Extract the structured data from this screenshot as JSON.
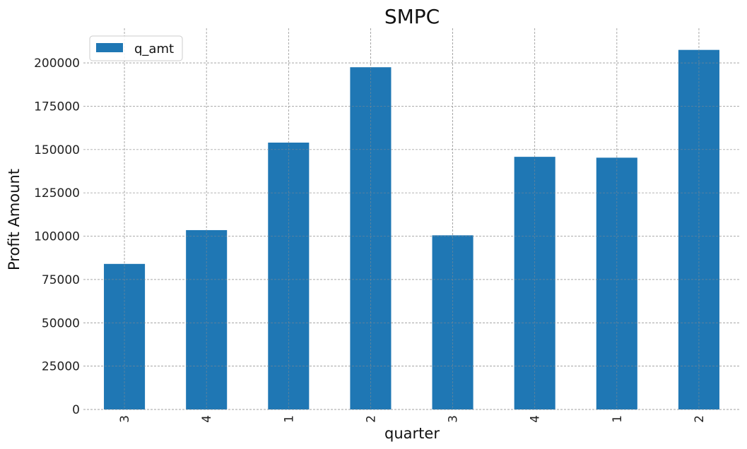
{
  "chart_data": {
    "type": "bar",
    "title": "SMPC",
    "xlabel": "quarter",
    "ylabel": "Profit Amount",
    "categories": [
      "3",
      "4",
      "1",
      "2",
      "3",
      "4",
      "1",
      "2"
    ],
    "series": [
      {
        "name": "q_amt",
        "values": [
          84000,
          103500,
          154000,
          197500,
          100500,
          145800,
          145300,
          207500
        ]
      }
    ],
    "ylim": [
      0,
      220000
    ],
    "yticks": [
      0,
      25000,
      50000,
      75000,
      100000,
      125000,
      150000,
      175000,
      200000
    ],
    "grid": true,
    "legend_position": "top-left",
    "colors": {
      "bar": "#1f77b4"
    }
  }
}
